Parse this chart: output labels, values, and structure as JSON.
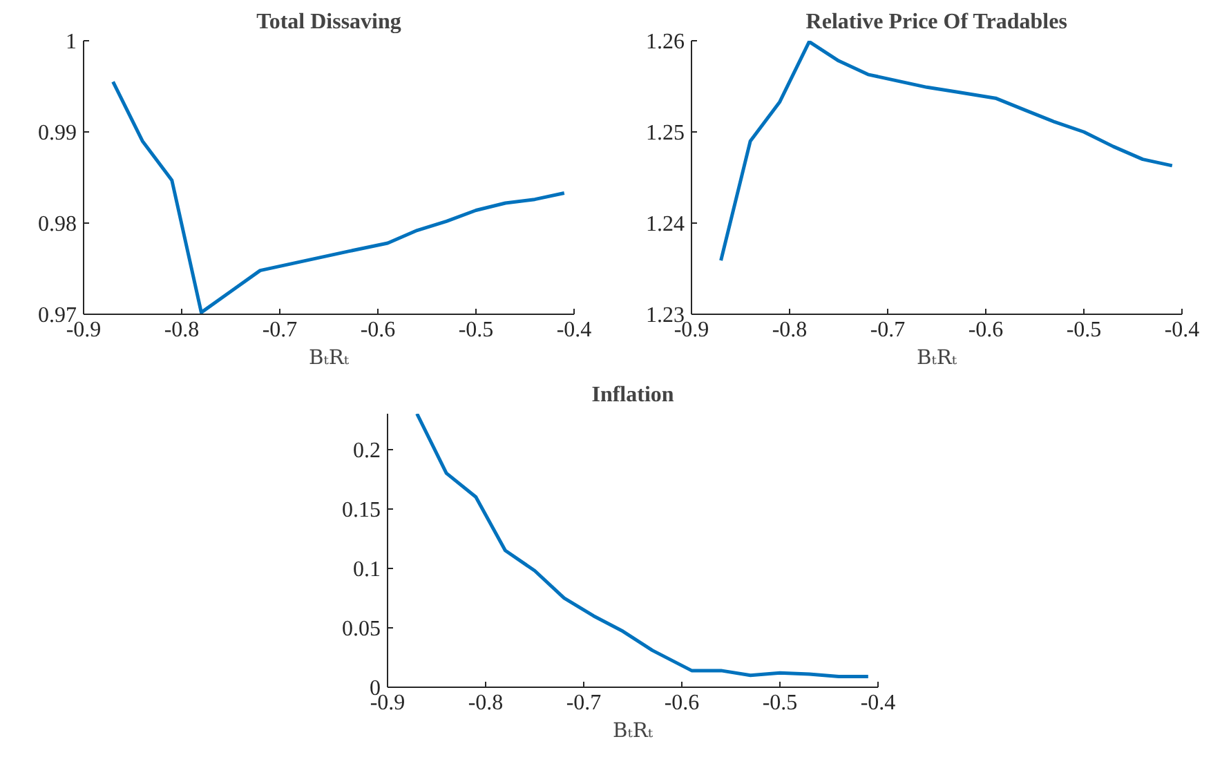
{
  "chart_data": [
    {
      "type": "line",
      "title": "Total Dissaving",
      "xlabel": "BₜRₜ",
      "grid": false,
      "x": [
        -0.87,
        -0.84,
        -0.81,
        -0.78,
        -0.75,
        -0.72,
        -0.69,
        -0.66,
        -0.63,
        -0.59,
        -0.56,
        -0.53,
        -0.5,
        -0.47,
        -0.44,
        -0.41
      ],
      "series": [
        {
          "color": "#0072bd",
          "values": [
            0.9955,
            0.989,
            0.9847,
            0.9702,
            0.9725,
            0.9748,
            0.9755,
            0.9762,
            0.9769,
            0.9778,
            0.9792,
            0.9802,
            0.9814,
            0.9822,
            0.9826,
            0.9833
          ]
        }
      ],
      "xlim": [
        -0.9,
        -0.4
      ],
      "xticks": [
        -0.9,
        -0.8,
        -0.7,
        -0.6,
        -0.5,
        -0.4
      ],
      "ylim": [
        0.97,
        1.0
      ],
      "yticks": [
        0.97,
        0.98,
        0.99,
        1
      ]
    },
    {
      "type": "line",
      "title": "Relative Price Of Tradables",
      "xlabel": "BₜRₜ",
      "grid": false,
      "x": [
        -0.87,
        -0.84,
        -0.81,
        -0.78,
        -0.75,
        -0.72,
        -0.69,
        -0.66,
        -0.63,
        -0.59,
        -0.56,
        -0.53,
        -0.5,
        -0.47,
        -0.44,
        -0.41
      ],
      "series": [
        {
          "color": "#0072bd",
          "values": [
            1.2359,
            1.249,
            1.2533,
            1.2599,
            1.2578,
            1.2563,
            1.2556,
            1.2549,
            1.2544,
            1.2537,
            1.2524,
            1.2511,
            1.25,
            1.2484,
            1.247,
            1.2463
          ]
        }
      ],
      "xlim": [
        -0.9,
        -0.4
      ],
      "xticks": [
        -0.9,
        -0.8,
        -0.7,
        -0.6,
        -0.5,
        -0.4
      ],
      "ylim": [
        1.23,
        1.26
      ],
      "yticks": [
        1.23,
        1.24,
        1.25,
        1.26
      ]
    },
    {
      "type": "line",
      "title": "Inflation",
      "xlabel": "BₜRₜ",
      "grid": false,
      "x": [
        -0.87,
        -0.84,
        -0.81,
        -0.78,
        -0.75,
        -0.72,
        -0.69,
        -0.66,
        -0.63,
        -0.59,
        -0.56,
        -0.53,
        -0.5,
        -0.47,
        -0.44,
        -0.41
      ],
      "series": [
        {
          "color": "#0072bd",
          "values": [
            0.23,
            0.18,
            0.16,
            0.115,
            0.098,
            0.075,
            0.06,
            0.047,
            0.031,
            0.014,
            0.014,
            0.01,
            0.012,
            0.011,
            0.009,
            0.009
          ]
        }
      ],
      "xlim": [
        -0.9,
        -0.4
      ],
      "xticks": [
        -0.9,
        -0.8,
        -0.7,
        -0.6,
        -0.5,
        -0.4
      ],
      "ylim": [
        0,
        0.23
      ],
      "yticks": [
        0,
        0.05,
        0.1,
        0.15,
        0.2
      ]
    }
  ]
}
